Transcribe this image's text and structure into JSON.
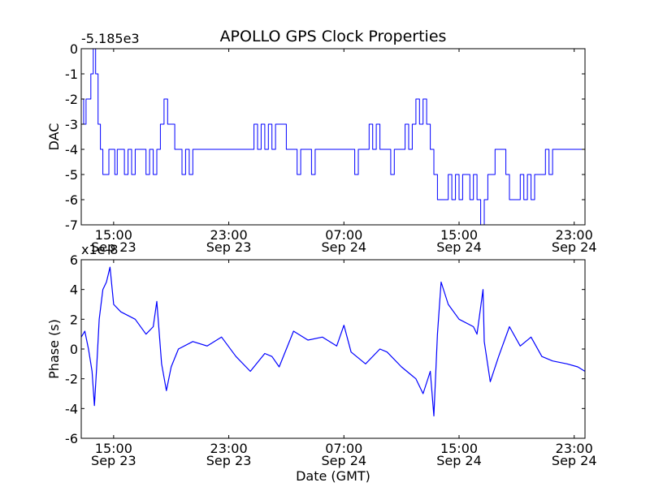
{
  "figure": {
    "title": "APOLLO GPS Clock Properties",
    "xlabel": "Date (GMT)"
  },
  "chart_data": [
    {
      "type": "line",
      "ylabel": "DAC",
      "y_offset_label": "-5.185e3",
      "ylim": [
        -7,
        0
      ],
      "y_ticks": [
        0,
        -1,
        -2,
        -3,
        -4,
        -5,
        -6,
        -7
      ],
      "y_tick_labels": [
        "0",
        "-1",
        "-2",
        "-3",
        "-4",
        "-5",
        "-6",
        "-7"
      ],
      "x_ticks": [
        {
          "time": "15:00",
          "date": "Sep 23"
        },
        {
          "time": "23:00",
          "date": "Sep 23"
        },
        {
          "time": "07:00",
          "date": "Sep 24"
        },
        {
          "time": "15:00",
          "date": "Sep 24"
        },
        {
          "time": "23:00",
          "date": "Sep 24"
        }
      ],
      "xlim": [
        "Sep 23 12:45",
        "Sep 24 23:45"
      ],
      "color": "#0000ff",
      "series": [
        {
          "points": [
            [
              "Sep 23 12:45",
              -2
            ],
            [
              "Sep 23 12:55",
              -3
            ],
            [
              "Sep 23 13:05",
              -2
            ],
            [
              "Sep 23 13:15",
              -2
            ],
            [
              "Sep 23 13:25",
              -1
            ],
            [
              "Sep 23 13:35",
              0
            ],
            [
              "Sep 23 13:45",
              -1
            ],
            [
              "Sep 23 13:55",
              -3
            ],
            [
              "Sep 23 14:05",
              -4
            ],
            [
              "Sep 23 14:15",
              -5
            ],
            [
              "Sep 23 14:30",
              -5
            ],
            [
              "Sep 23 14:40",
              -4
            ],
            [
              "Sep 23 14:55",
              -4
            ],
            [
              "Sep 23 15:05",
              -5
            ],
            [
              "Sep 23 15:15",
              -4
            ],
            [
              "Sep 23 15:30",
              -4
            ],
            [
              "Sep 23 15:45",
              -5
            ],
            [
              "Sep 23 16:00",
              -4
            ],
            [
              "Sep 23 16:15",
              -5
            ],
            [
              "Sep 23 16:30",
              -4
            ],
            [
              "Sep 23 17:00",
              -4
            ],
            [
              "Sep 23 17:15",
              -5
            ],
            [
              "Sep 23 17:30",
              -4
            ],
            [
              "Sep 23 17:45",
              -5
            ],
            [
              "Sep 23 18:00",
              -4
            ],
            [
              "Sep 23 18:15",
              -3
            ],
            [
              "Sep 23 18:30",
              -2
            ],
            [
              "Sep 23 18:45",
              -3
            ],
            [
              "Sep 23 19:00",
              -3
            ],
            [
              "Sep 23 19:15",
              -4
            ],
            [
              "Sep 23 19:30",
              -4
            ],
            [
              "Sep 23 19:45",
              -5
            ],
            [
              "Sep 23 20:00",
              -4
            ],
            [
              "Sep 23 20:15",
              -5
            ],
            [
              "Sep 23 20:30",
              -4
            ],
            [
              "Sep 23 22:00",
              -4
            ],
            [
              "Sep 23 23:30",
              -4
            ],
            [
              "Sep 24 00:30",
              -4
            ],
            [
              "Sep 24 00:45",
              -3
            ],
            [
              "Sep 24 01:00",
              -4
            ],
            [
              "Sep 24 01:15",
              -3
            ],
            [
              "Sep 24 01:30",
              -4
            ],
            [
              "Sep 24 01:45",
              -3
            ],
            [
              "Sep 24 02:00",
              -4
            ],
            [
              "Sep 24 02:15",
              -3
            ],
            [
              "Sep 24 02:45",
              -3
            ],
            [
              "Sep 24 03:00",
              -4
            ],
            [
              "Sep 24 03:30",
              -4
            ],
            [
              "Sep 24 03:45",
              -5
            ],
            [
              "Sep 24 04:00",
              -4
            ],
            [
              "Sep 24 04:30",
              -4
            ],
            [
              "Sep 24 04:45",
              -5
            ],
            [
              "Sep 24 05:00",
              -4
            ],
            [
              "Sep 24 06:00",
              -4
            ],
            [
              "Sep 24 07:00",
              -4
            ],
            [
              "Sep 24 07:30",
              -4
            ],
            [
              "Sep 24 07:45",
              -5
            ],
            [
              "Sep 24 08:00",
              -4
            ],
            [
              "Sep 24 08:30",
              -4
            ],
            [
              "Sep 24 08:45",
              -3
            ],
            [
              "Sep 24 09:00",
              -4
            ],
            [
              "Sep 24 09:15",
              -3
            ],
            [
              "Sep 24 09:30",
              -4
            ],
            [
              "Sep 24 10:00",
              -4
            ],
            [
              "Sep 24 10:15",
              -5
            ],
            [
              "Sep 24 10:30",
              -4
            ],
            [
              "Sep 24 11:00",
              -4
            ],
            [
              "Sep 24 11:15",
              -3
            ],
            [
              "Sep 24 11:30",
              -4
            ],
            [
              "Sep 24 11:45",
              -3
            ],
            [
              "Sep 24 12:00",
              -2
            ],
            [
              "Sep 24 12:15",
              -3
            ],
            [
              "Sep 24 12:30",
              -2
            ],
            [
              "Sep 24 12:45",
              -3
            ],
            [
              "Sep 24 13:00",
              -4
            ],
            [
              "Sep 24 13:15",
              -5
            ],
            [
              "Sep 24 13:30",
              -6
            ],
            [
              "Sep 24 14:00",
              -6
            ],
            [
              "Sep 24 14:15",
              -5
            ],
            [
              "Sep 24 14:30",
              -6
            ],
            [
              "Sep 24 14:45",
              -5
            ],
            [
              "Sep 24 15:00",
              -6
            ],
            [
              "Sep 24 15:15",
              -5
            ],
            [
              "Sep 24 15:45",
              -6
            ],
            [
              "Sep 24 16:00",
              -5
            ],
            [
              "Sep 24 16:15",
              -6
            ],
            [
              "Sep 24 16:30",
              -7
            ],
            [
              "Sep 24 16:45",
              -6
            ],
            [
              "Sep 24 17:00",
              -5
            ],
            [
              "Sep 24 17:30",
              -4
            ],
            [
              "Sep 24 18:00",
              -4
            ],
            [
              "Sep 24 18:15",
              -5
            ],
            [
              "Sep 24 18:30",
              -6
            ],
            [
              "Sep 24 19:00",
              -6
            ],
            [
              "Sep 24 19:15",
              -5
            ],
            [
              "Sep 24 19:30",
              -6
            ],
            [
              "Sep 24 19:45",
              -5
            ],
            [
              "Sep 24 20:00",
              -6
            ],
            [
              "Sep 24 20:15",
              -5
            ],
            [
              "Sep 24 20:45",
              -5
            ],
            [
              "Sep 24 21:00",
              -4
            ],
            [
              "Sep 24 21:15",
              -5
            ],
            [
              "Sep 24 21:30",
              -4
            ],
            [
              "Sep 24 22:30",
              -4
            ],
            [
              "Sep 24 23:45",
              -4
            ]
          ]
        }
      ]
    },
    {
      "type": "line",
      "ylabel": "Phase (s)",
      "y_offset_label": "x1e-8",
      "ylim": [
        -6,
        6
      ],
      "y_ticks": [
        6,
        4,
        2,
        0,
        -2,
        -4,
        -6
      ],
      "y_tick_labels": [
        "6",
        "4",
        "2",
        "0",
        "-2",
        "-4",
        "-6"
      ],
      "x_ticks": [
        {
          "time": "15:00",
          "date": "Sep 23"
        },
        {
          "time": "23:00",
          "date": "Sep 23"
        },
        {
          "time": "07:00",
          "date": "Sep 24"
        },
        {
          "time": "15:00",
          "date": "Sep 24"
        },
        {
          "time": "23:00",
          "date": "Sep 24"
        }
      ],
      "xlim": [
        "Sep 23 12:45",
        "Sep 24 23:45"
      ],
      "color": "#0000ff",
      "series": [
        {
          "points": [
            [
              "Sep 23 12:45",
              0.8
            ],
            [
              "Sep 23 13:00",
              1.2
            ],
            [
              "Sep 23 13:15",
              0.0
            ],
            [
              "Sep 23 13:30",
              -1.5
            ],
            [
              "Sep 23 13:40",
              -3.8
            ],
            [
              "Sep 23 13:50",
              -1.0
            ],
            [
              "Sep 23 14:00",
              2.0
            ],
            [
              "Sep 23 14:15",
              4.0
            ],
            [
              "Sep 23 14:30",
              4.5
            ],
            [
              "Sep 23 14:45",
              5.5
            ],
            [
              "Sep 23 15:00",
              3.0
            ],
            [
              "Sep 23 15:30",
              2.5
            ],
            [
              "Sep 23 16:30",
              2.0
            ],
            [
              "Sep 23 17:15",
              1.0
            ],
            [
              "Sep 23 17:45",
              1.5
            ],
            [
              "Sep 23 18:00",
              3.2
            ],
            [
              "Sep 23 18:20",
              -1.0
            ],
            [
              "Sep 23 18:40",
              -2.8
            ],
            [
              "Sep 23 19:00",
              -1.2
            ],
            [
              "Sep 23 19:30",
              0.0
            ],
            [
              "Sep 23 20:30",
              0.5
            ],
            [
              "Sep 23 21:30",
              0.2
            ],
            [
              "Sep 23 22:30",
              0.8
            ],
            [
              "Sep 23 23:30",
              -0.5
            ],
            [
              "Sep 24 00:30",
              -1.5
            ],
            [
              "Sep 24 01:30",
              -0.3
            ],
            [
              "Sep 24 02:00",
              -0.5
            ],
            [
              "Sep 24 02:30",
              -1.2
            ],
            [
              "Sep 24 03:30",
              1.2
            ],
            [
              "Sep 24 04:30",
              0.6
            ],
            [
              "Sep 24 05:30",
              0.8
            ],
            [
              "Sep 24 06:30",
              0.2
            ],
            [
              "Sep 24 07:00",
              1.6
            ],
            [
              "Sep 24 07:30",
              -0.2
            ],
            [
              "Sep 24 08:30",
              -1.0
            ],
            [
              "Sep 24 09:30",
              0.0
            ],
            [
              "Sep 24 10:00",
              -0.2
            ],
            [
              "Sep 24 11:00",
              -1.2
            ],
            [
              "Sep 24 12:00",
              -2.0
            ],
            [
              "Sep 24 12:30",
              -3.0
            ],
            [
              "Sep 24 13:00",
              -1.5
            ],
            [
              "Sep 24 13:15",
              -4.5
            ],
            [
              "Sep 24 13:30",
              1.0
            ],
            [
              "Sep 24 13:45",
              4.5
            ],
            [
              "Sep 24 14:15",
              3.0
            ],
            [
              "Sep 24 15:00",
              2.0
            ],
            [
              "Sep 24 16:00",
              1.5
            ],
            [
              "Sep 24 16:15",
              1.0
            ],
            [
              "Sep 24 16:40",
              4.0
            ],
            [
              "Sep 24 16:45",
              0.5
            ],
            [
              "Sep 24 17:10",
              -2.2
            ],
            [
              "Sep 24 17:45",
              -0.5
            ],
            [
              "Sep 24 18:30",
              1.5
            ],
            [
              "Sep 24 19:15",
              0.2
            ],
            [
              "Sep 24 20:00",
              0.8
            ],
            [
              "Sep 24 20:45",
              -0.5
            ],
            [
              "Sep 24 21:30",
              -0.8
            ],
            [
              "Sep 24 22:30",
              -1.0
            ],
            [
              "Sep 24 23:15",
              -1.2
            ],
            [
              "Sep 24 23:45",
              -1.5
            ]
          ]
        }
      ]
    }
  ]
}
